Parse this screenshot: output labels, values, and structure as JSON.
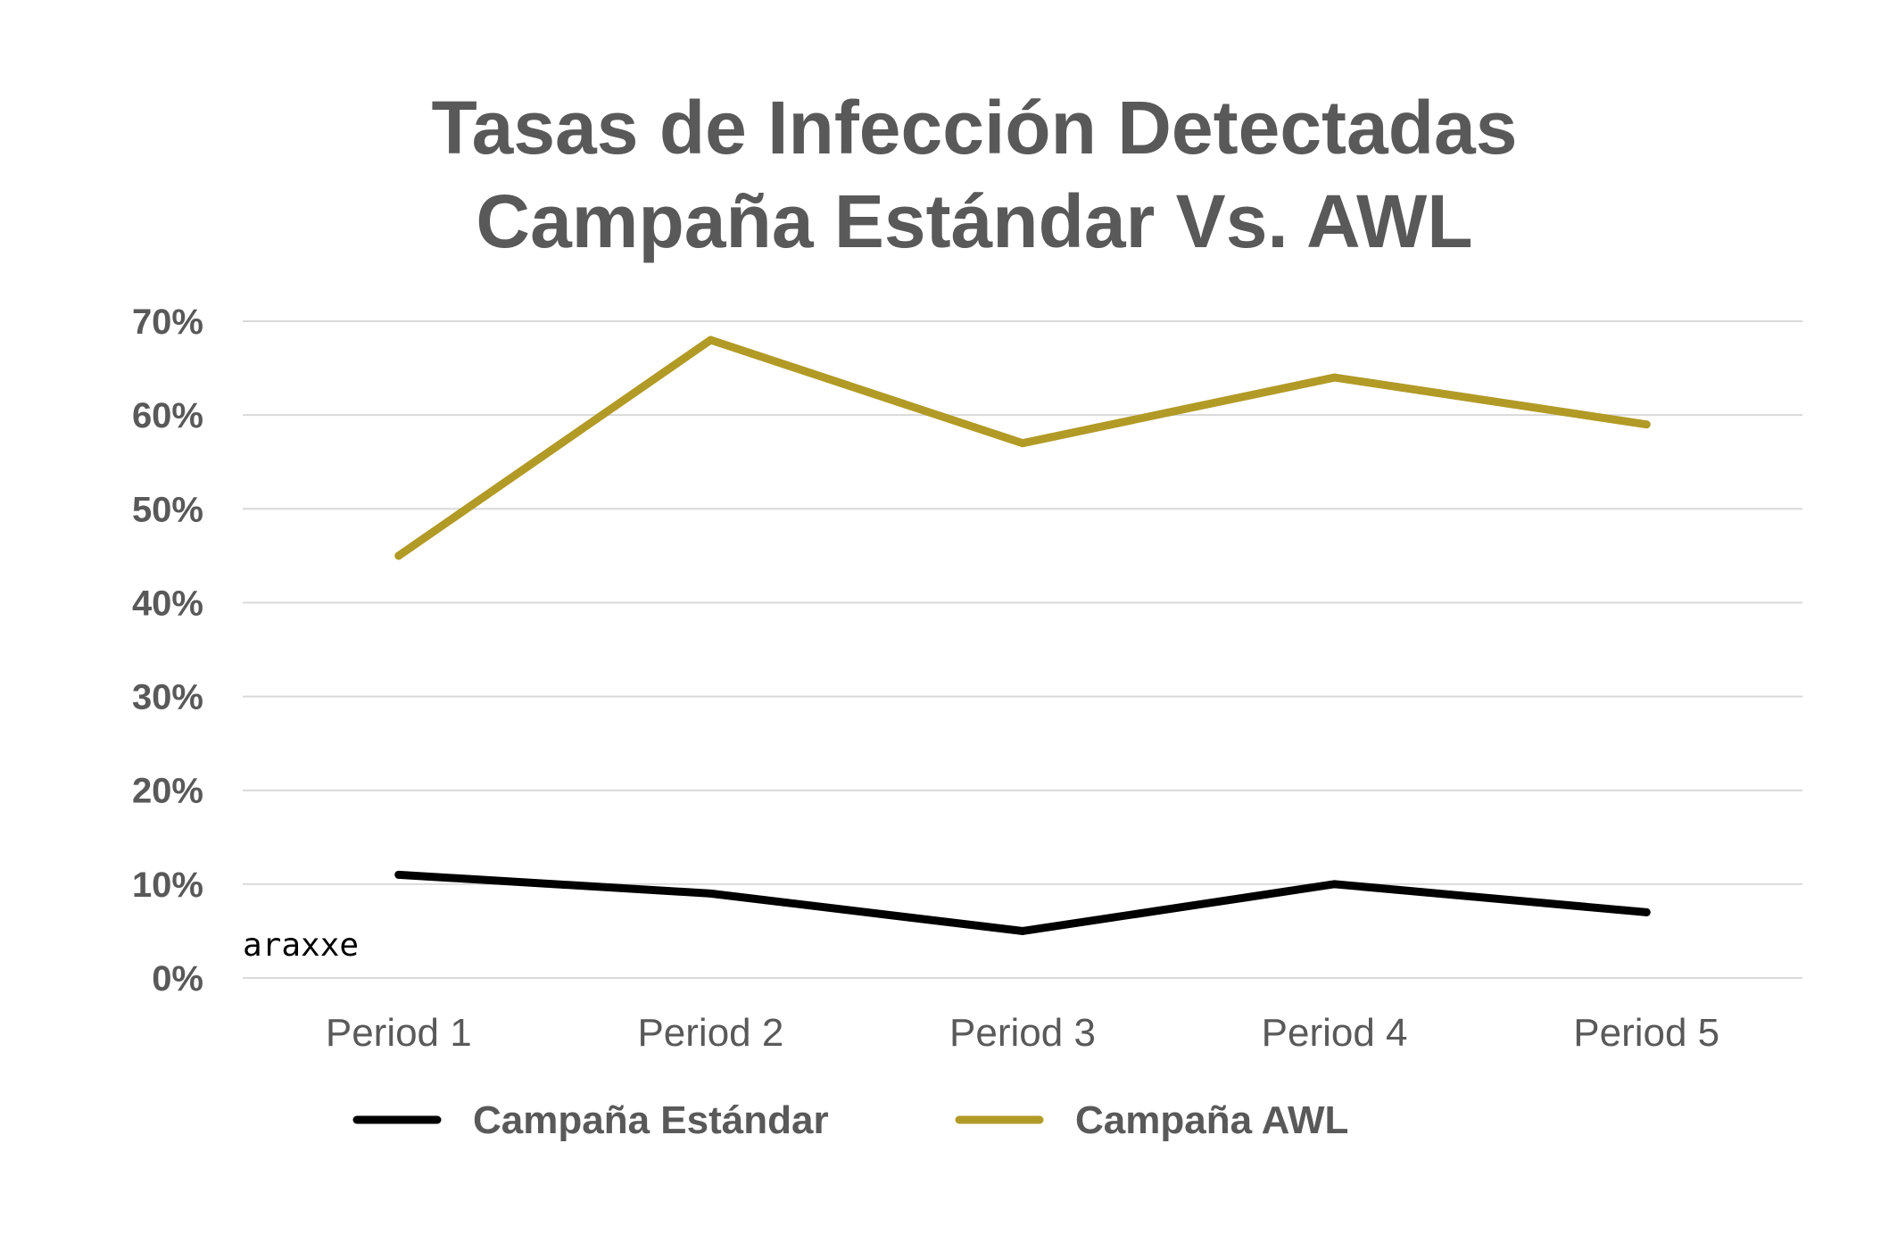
{
  "chart_data": {
    "type": "line",
    "title_lines": [
      "Tasas de Infección Detectadas",
      "Campaña Estándar Vs. AWL"
    ],
    "categories": [
      "Period 1",
      "Period 2",
      "Period 3",
      "Period 4",
      "Period 5"
    ],
    "y_tick_labels": [
      "0%",
      "10%",
      "20%",
      "30%",
      "40%",
      "50%",
      "60%",
      "70%"
    ],
    "ylim": [
      0,
      70
    ],
    "y_unit": "%",
    "grid": true,
    "legend_position": "bottom",
    "series": [
      {
        "name": "Campaña Estándar",
        "color": "#000000",
        "values": [
          11,
          9,
          5,
          10,
          7
        ]
      },
      {
        "name": "Campaña AWL",
        "color": "#b29a26",
        "values": [
          45,
          68,
          57,
          64,
          59
        ]
      }
    ]
  },
  "watermark": "araxxe",
  "colors": {
    "text": "#595959",
    "grid": "#d9d9d9",
    "background": "#ffffff"
  }
}
